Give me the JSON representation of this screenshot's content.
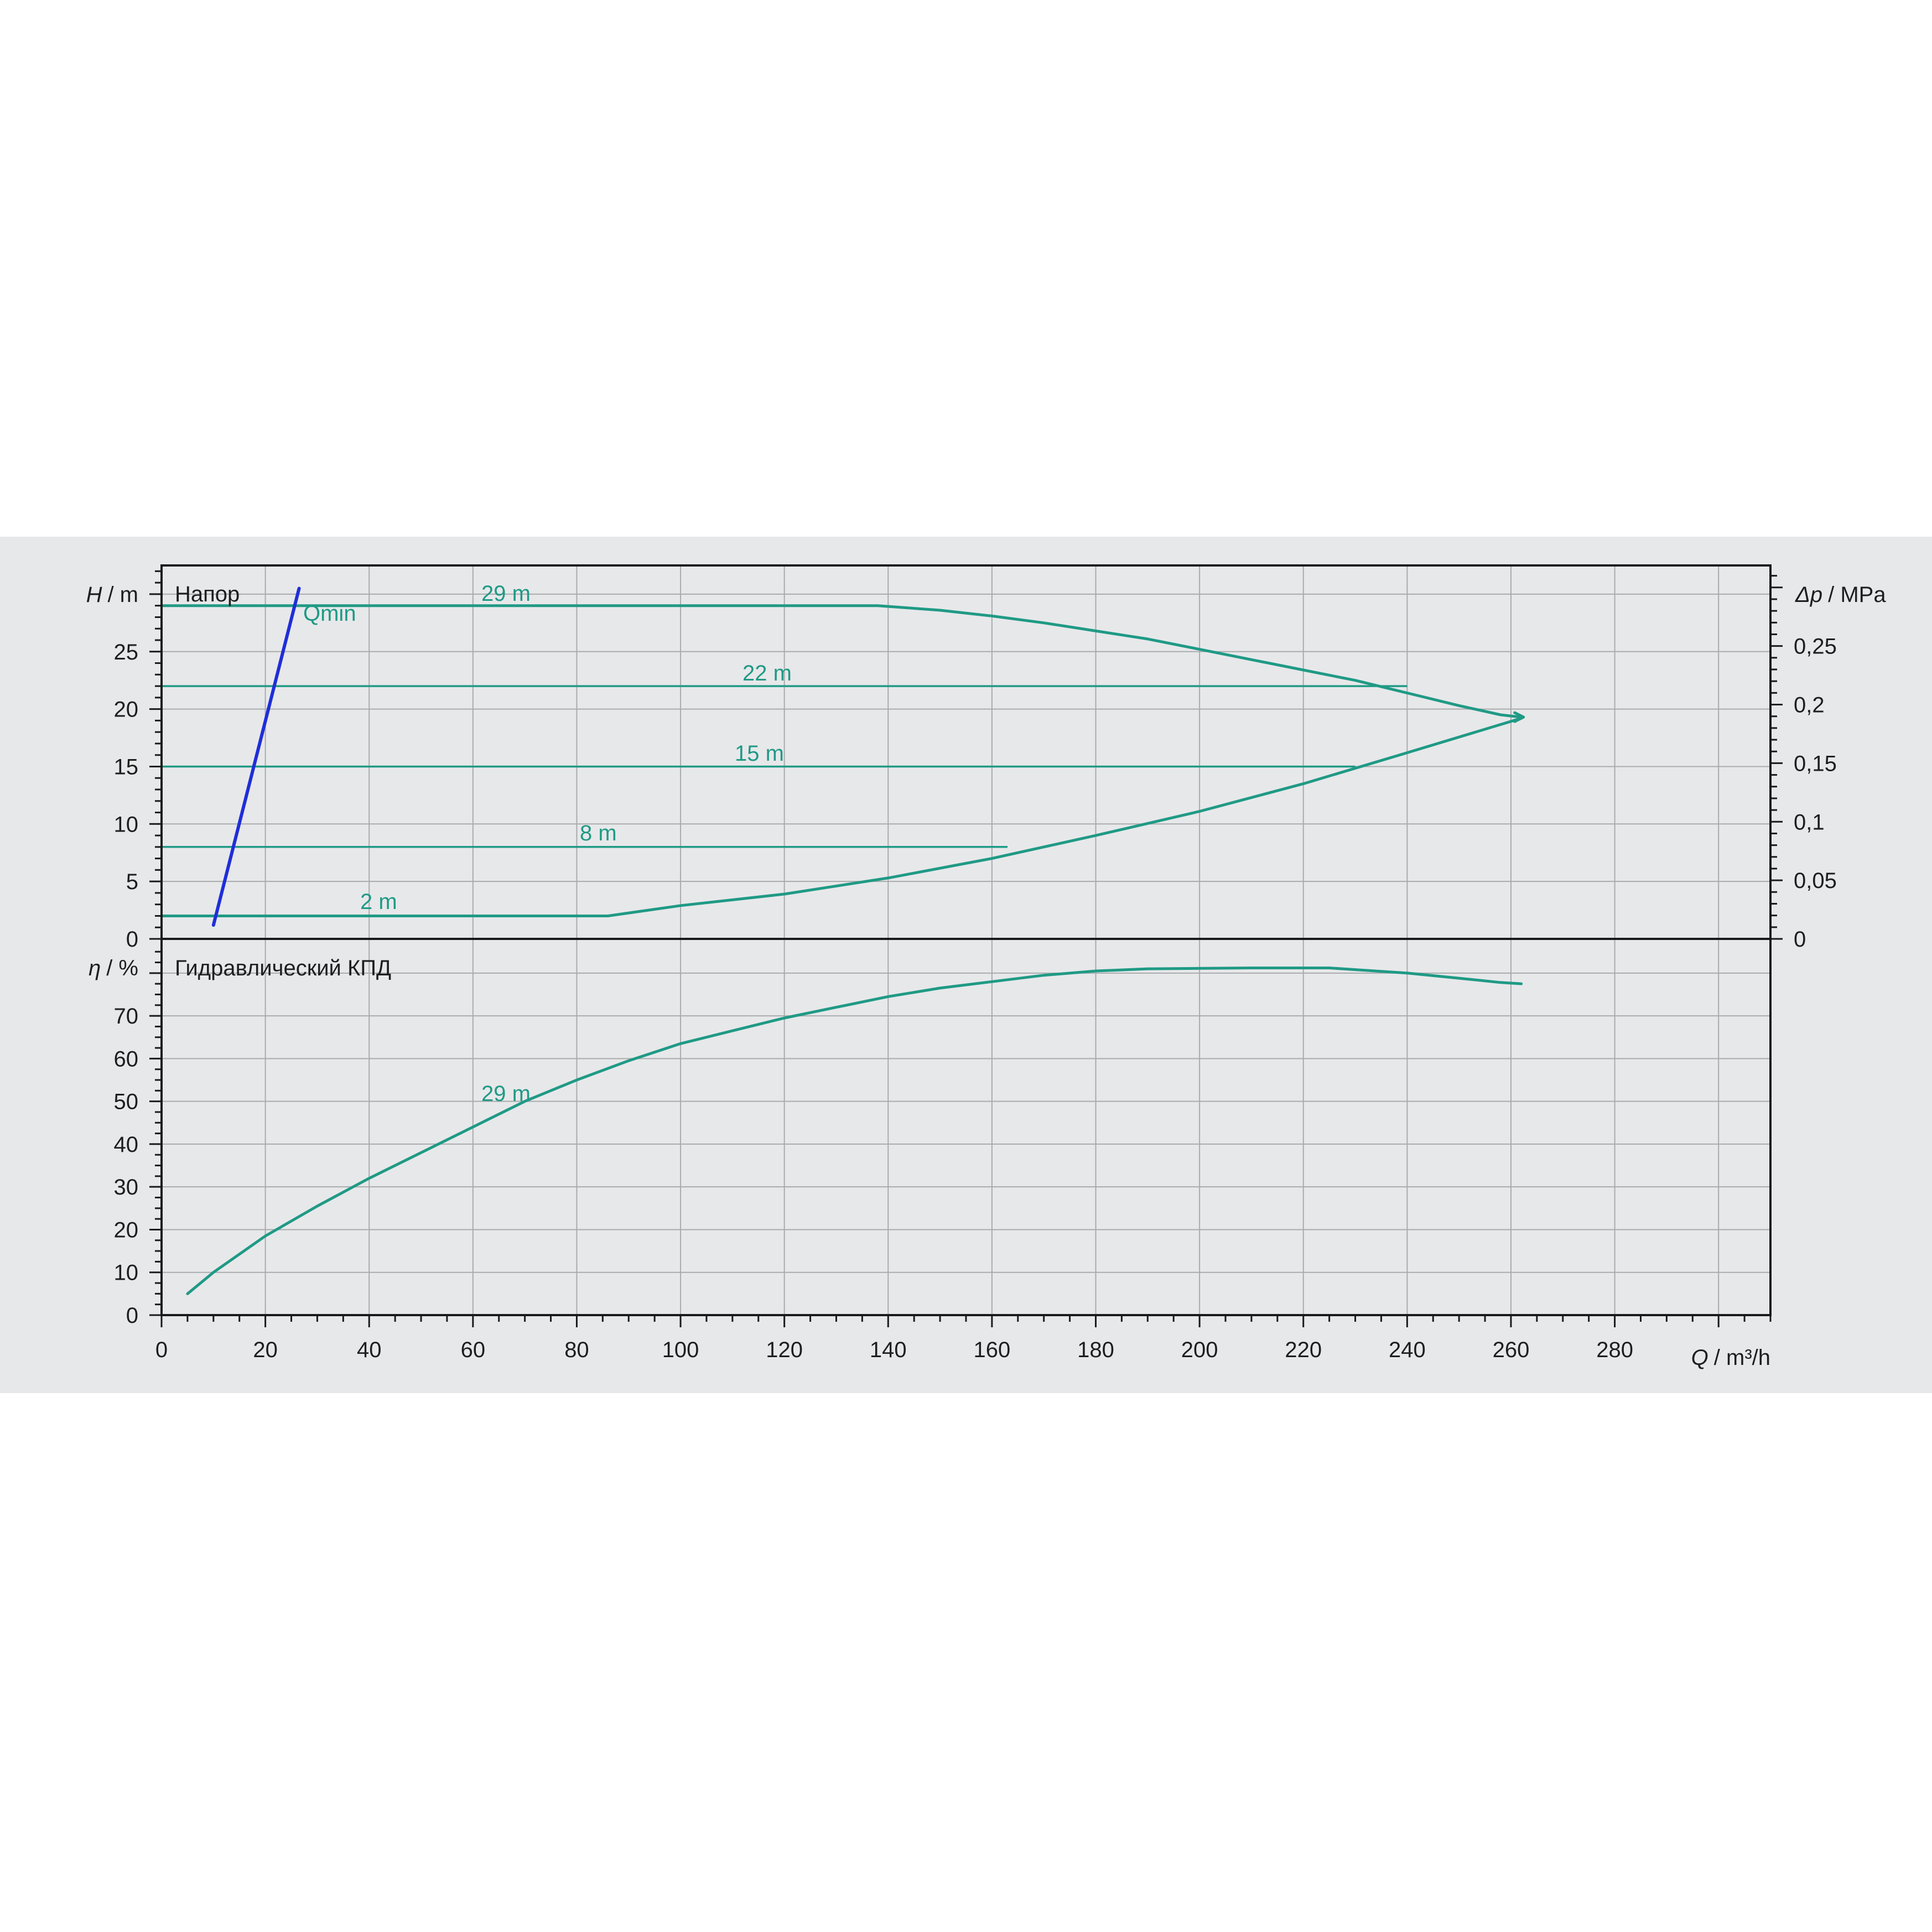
{
  "colors": {
    "background": "#ffffff",
    "band": "#e7e8ea",
    "grid": "#a9abad",
    "frame": "#1a1a1a",
    "curve": "#1f9a85",
    "qmin": "#1f2ed8"
  },
  "chart_data": [
    {
      "type": "line",
      "panel": "head",
      "title": "Напор",
      "ylabel_symbol": "H",
      "ylabel_unit": "/ m",
      "y2label_symbol": "Δp",
      "y2label_unit": "/ MPa",
      "xlim": [
        0,
        310
      ],
      "ylim": [
        0,
        32.5
      ],
      "y2lim": [
        0,
        0.3188
      ],
      "yticks": [
        0,
        5,
        10,
        15,
        20,
        25
      ],
      "yticklabels": [
        "0",
        "5",
        "10",
        "15",
        "20",
        "25"
      ],
      "y2ticks": [
        0,
        0.05,
        0.1,
        0.15,
        0.2,
        0.25
      ],
      "y2ticklabels": [
        "0",
        "0,05",
        "0,1",
        "0,15",
        "0,2",
        "0,25"
      ],
      "grid": true,
      "series": [
        {
          "name": "29 m",
          "x": [
            0,
            138,
            150,
            160,
            170,
            180,
            190,
            200,
            210,
            220,
            230,
            240,
            250,
            258,
            262
          ],
          "y": [
            29,
            29,
            28.6,
            28.1,
            27.5,
            26.8,
            26.1,
            25.2,
            24.3,
            23.4,
            22.5,
            21.4,
            20.3,
            19.5,
            19.3
          ]
        },
        {
          "name": "22 m",
          "x": [
            0,
            240
          ],
          "y": [
            22,
            22
          ]
        },
        {
          "name": "15 m",
          "x": [
            0,
            230
          ],
          "y": [
            15,
            15
          ]
        },
        {
          "name": "8 m",
          "x": [
            0,
            163
          ],
          "y": [
            8,
            8
          ]
        },
        {
          "name": "2 m",
          "x": [
            0,
            86,
            100,
            120,
            140,
            160,
            180,
            200,
            220,
            240,
            262
          ],
          "y": [
            2,
            2,
            2.9,
            3.9,
            5.3,
            7.0,
            9.0,
            11.1,
            13.5,
            16.2,
            19.2
          ]
        }
      ],
      "qmin": {
        "label": "Qmin",
        "x": [
          10,
          26.5
        ],
        "y": [
          1.2,
          30.5
        ]
      }
    },
    {
      "type": "line",
      "panel": "efficiency",
      "title": "Гидравлический КПД",
      "ylabel_symbol": "η",
      "ylabel_unit": "/ %",
      "xlabel_symbol": "Q",
      "xlabel_unit": "/ m³/h",
      "xlim": [
        0,
        310
      ],
      "ylim": [
        0,
        88
      ],
      "yticks": [
        0,
        10,
        20,
        30,
        40,
        50,
        60,
        70
      ],
      "yticklabels": [
        "0",
        "10",
        "20",
        "30",
        "40",
        "50",
        "60",
        "70"
      ],
      "xticks": [
        0,
        20,
        40,
        60,
        80,
        100,
        120,
        140,
        160,
        180,
        200,
        220,
        240,
        260,
        280
      ],
      "xticklabels": [
        "0",
        "20",
        "40",
        "60",
        "80",
        "100",
        "120",
        "140",
        "160",
        "180",
        "200",
        "220",
        "240",
        "260",
        "280"
      ],
      "grid": true,
      "series": [
        {
          "name": "29 m",
          "x": [
            5,
            10,
            20,
            30,
            40,
            50,
            60,
            70,
            80,
            90,
            100,
            110,
            120,
            130,
            140,
            150,
            160,
            170,
            180,
            190,
            200,
            210,
            220,
            225,
            230,
            240,
            250,
            258,
            262
          ],
          "y": [
            5,
            10,
            18.5,
            25.5,
            32,
            38,
            44,
            50,
            55,
            59.5,
            63.5,
            66.5,
            69.5,
            72,
            74.5,
            76.5,
            78,
            79.5,
            80.5,
            81,
            81.1,
            81.2,
            81.2,
            81.2,
            80.8,
            80,
            78.8,
            77.8,
            77.5
          ]
        }
      ]
    }
  ]
}
